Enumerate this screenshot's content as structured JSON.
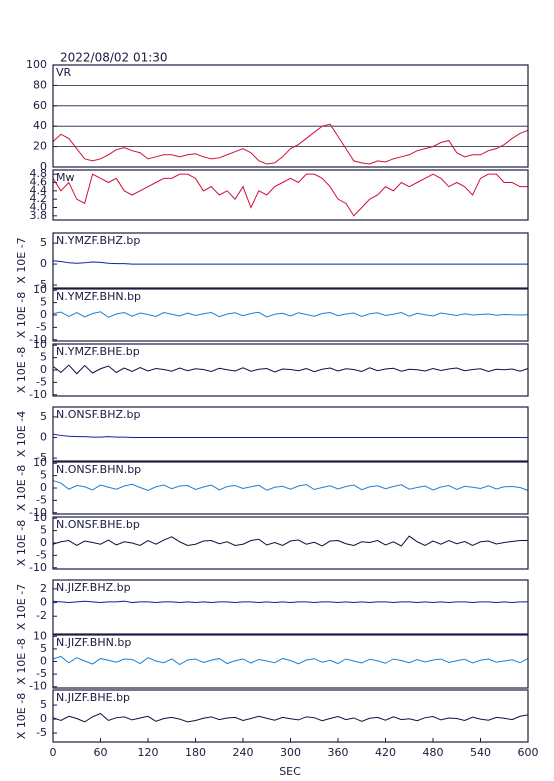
{
  "chart_data": {
    "title": "2022/08/02 01:30",
    "xlabel": "SEC",
    "xlim": [
      0,
      600
    ],
    "xticks": [
      0,
      60,
      120,
      180,
      240,
      300,
      360,
      420,
      480,
      540,
      600
    ],
    "x": [
      0,
      10,
      20,
      30,
      40,
      50,
      60,
      70,
      80,
      90,
      100,
      110,
      120,
      130,
      140,
      150,
      160,
      170,
      180,
      190,
      200,
      210,
      220,
      230,
      240,
      250,
      260,
      270,
      280,
      290,
      300,
      310,
      320,
      330,
      340,
      350,
      360,
      370,
      380,
      390,
      400,
      410,
      420,
      430,
      440,
      450,
      460,
      470,
      480,
      490,
      500,
      510,
      520,
      530,
      540,
      550,
      560,
      570,
      580,
      590,
      600
    ],
    "panels": [
      {
        "type": "line",
        "label": "VR",
        "color": "#d0103a",
        "grid": true,
        "ylim": [
          0,
          100
        ],
        "yticks": [
          0,
          20,
          40,
          60,
          80,
          100
        ],
        "values": [
          25,
          32,
          28,
          18,
          8,
          6,
          8,
          12,
          17,
          19,
          16,
          14,
          8,
          10,
          12,
          12,
          10,
          12,
          13,
          10,
          8,
          9,
          12,
          15,
          18,
          14,
          6,
          3,
          4,
          10,
          18,
          22,
          28,
          34,
          40,
          42,
          30,
          18,
          6,
          4,
          3,
          6,
          5,
          8,
          10,
          12,
          16,
          18,
          20,
          24,
          26,
          14,
          10,
          12,
          12,
          16,
          18,
          22,
          28,
          33,
          36
        ]
      },
      {
        "type": "line",
        "label": "Mw",
        "color": "#d0103a",
        "grid": false,
        "ylim": [
          3.7,
          4.9
        ],
        "yticks": [
          3.8,
          {
            "value": 4,
            "label": "4.0"
          },
          4.2,
          4.4,
          4.6,
          4.8
        ],
        "values": [
          4.7,
          4.4,
          4.6,
          4.2,
          4.1,
          4.8,
          4.7,
          4.6,
          4.7,
          4.4,
          4.3,
          4.4,
          4.5,
          4.6,
          4.7,
          4.7,
          4.8,
          4.8,
          4.7,
          4.4,
          4.5,
          4.3,
          4.4,
          4.2,
          4.5,
          4.0,
          4.4,
          4.3,
          4.5,
          4.6,
          4.7,
          4.6,
          4.8,
          4.8,
          4.7,
          4.5,
          4.2,
          4.1,
          3.8,
          4.0,
          4.2,
          4.3,
          4.5,
          4.4,
          4.6,
          4.5,
          4.6,
          4.7,
          4.8,
          4.7,
          4.5,
          4.6,
          4.5,
          4.3,
          4.7,
          4.8,
          4.8,
          4.6,
          4.6,
          4.5,
          4.5
        ]
      },
      {
        "type": "line",
        "label": "N.YMZF.BHZ.bp",
        "ylabel": "X 10E -7",
        "color": "#1020a0",
        "grid": false,
        "ylim": [
          -5.7,
          7.4
        ],
        "yticks": [
          -5,
          0,
          5
        ],
        "values": [
          0.8,
          0.6,
          0.3,
          0.2,
          0.3,
          0.5,
          0.4,
          0.2,
          0.1,
          0.1,
          0,
          0,
          0,
          0,
          0,
          0,
          0,
          0,
          0,
          0,
          0,
          0,
          0,
          0,
          0,
          0,
          0,
          0,
          0,
          0,
          0,
          0,
          0,
          0,
          0,
          0,
          0,
          0,
          0,
          0,
          0,
          0,
          0,
          0,
          0,
          0,
          0,
          0,
          0,
          0,
          0,
          0,
          0,
          0,
          0,
          0,
          0,
          0,
          0,
          0,
          0
        ]
      },
      {
        "type": "line",
        "label": "N.YMZF.BHN.bp",
        "ylabel": "X 10E -8",
        "color": "#2080d0",
        "grid": false,
        "ylim": [
          -10.5,
          10.5
        ],
        "yticks": [
          -10,
          -5,
          0,
          5,
          10
        ],
        "values": [
          0.5,
          1.2,
          -0.6,
          1.0,
          -0.8,
          0.6,
          1.3,
          -0.9,
          0.4,
          1.0,
          -0.5,
          0.8,
          0.2,
          -0.6,
          1.0,
          0.3,
          -0.4,
          0.8,
          -0.2,
          0.5,
          1.0,
          -0.7,
          0.4,
          0.9,
          -0.3,
          0.6,
          1.1,
          -0.8,
          0.3,
          0.7,
          -0.4,
          0.9,
          0.2,
          -0.5,
          0.6,
          1.0,
          -0.3,
          0.4,
          0.8,
          -0.6,
          0.5,
          0.9,
          -0.2,
          0.3,
          1.0,
          -0.5,
          0.7,
          0.1,
          -0.4,
          0.8,
          0.3,
          -0.2,
          0.5,
          0.0,
          0.2,
          0.4,
          -0.1,
          0.2,
          0.1,
          0.0,
          0.1
        ]
      },
      {
        "type": "line",
        "label": "N.YMZF.BHE.bp",
        "ylabel": "X 10E -8",
        "color": "#101040",
        "grid": false,
        "ylim": [
          -10.5,
          10.5
        ],
        "yticks": [
          -10,
          -5,
          0,
          5,
          10
        ],
        "values": [
          1.5,
          -1.0,
          2.0,
          -1.5,
          1.8,
          -1.2,
          0.5,
          1.6,
          -1.0,
          0.8,
          -0.6,
          1.0,
          -0.4,
          0.6,
          0.2,
          -0.5,
          0.8,
          -0.3,
          0.5,
          0.2,
          -0.6,
          0.7,
          0.1,
          -0.4,
          0.9,
          -0.5,
          0.3,
          0.6,
          -0.8,
          0.4,
          0.2,
          -0.3,
          0.6,
          -0.7,
          0.3,
          0.8,
          -0.4,
          0.5,
          0.2,
          -0.6,
          0.9,
          -0.3,
          0.4,
          0.7,
          -0.5,
          0.3,
          0.1,
          -0.4,
          0.6,
          -0.2,
          0.4,
          0.8,
          -0.3,
          0.2,
          0.5,
          -0.6,
          0.3,
          0.1,
          0.4,
          -0.5,
          0.6
        ]
      },
      {
        "type": "line",
        "label": "N.ONSF.BHZ.bp",
        "ylabel": "X 10E -4",
        "color": "#1020a0",
        "grid": false,
        "ylim": [
          -5.7,
          7.4
        ],
        "yticks": [
          -5,
          0,
          5
        ],
        "values": [
          0.8,
          0.5,
          0.3,
          0.2,
          0.2,
          0.1,
          0.1,
          0.2,
          0.1,
          0.1,
          0,
          0,
          0,
          0,
          0,
          0,
          0,
          0,
          0,
          0,
          0,
          0,
          0,
          0,
          0,
          0,
          0,
          0,
          0,
          0,
          0,
          0,
          0,
          0,
          0,
          0,
          0,
          0,
          0,
          0,
          0,
          0,
          0,
          0,
          0,
          0,
          0,
          0,
          0,
          0,
          0,
          0,
          0,
          0,
          0,
          0,
          0,
          0,
          0,
          0,
          0
        ]
      },
      {
        "type": "line",
        "label": "N.ONSF.BHN.bp",
        "ylabel": "X 10E -8",
        "color": "#2080d0",
        "grid": false,
        "ylim": [
          -10.5,
          10.5
        ],
        "yticks": [
          -10,
          -5,
          0,
          5,
          10
        ],
        "values": [
          3.0,
          2.0,
          -0.5,
          1.0,
          0.5,
          -0.8,
          1.2,
          0.3,
          -0.5,
          0.8,
          1.5,
          0.2,
          -1.0,
          0.5,
          1.2,
          -0.3,
          0.8,
          1.0,
          -0.6,
          0.4,
          1.2,
          -0.8,
          0.6,
          1.0,
          -0.2,
          0.5,
          1.1,
          -0.9,
          0.3,
          0.7,
          -0.5,
          0.8,
          1.4,
          -0.6,
          0.2,
          0.9,
          -0.4,
          0.6,
          1.2,
          -0.7,
          0.5,
          0.9,
          -0.3,
          0.6,
          1.3,
          -0.5,
          0.2,
          0.8,
          -0.8,
          0.4,
          1.0,
          -0.6,
          0.7,
          0.3,
          -0.2,
          0.9,
          -0.4,
          0.5,
          0.6,
          0.2,
          -1.0
        ]
      },
      {
        "type": "line",
        "label": "N.ONSF.BHE.bp",
        "ylabel": "X 10E -8",
        "color": "#101040",
        "grid": false,
        "ylim": [
          -10.5,
          10.5
        ],
        "yticks": [
          -10,
          -5,
          0,
          5,
          10
        ],
        "values": [
          -0.5,
          0.5,
          1.0,
          -1.0,
          0.8,
          0.2,
          -0.5,
          1.2,
          -0.8,
          0.5,
          0.0,
          -1.0,
          1.0,
          -0.5,
          1.2,
          2.5,
          0.5,
          -1.0,
          -0.5,
          0.8,
          1.0,
          -0.3,
          0.5,
          -1.0,
          -0.5,
          1.0,
          1.5,
          -0.8,
          0.2,
          -1.0,
          0.8,
          1.2,
          -0.5,
          0.3,
          -1.2,
          0.8,
          1.0,
          -0.3,
          -1.0,
          0.5,
          0.2,
          1.0,
          -0.8,
          0.5,
          -1.2,
          2.8,
          0.5,
          -1.0,
          0.8,
          -0.5,
          1.0,
          -0.3,
          0.6,
          -1.0,
          0.5,
          0.8,
          -0.4,
          0.2,
          0.6,
          1.0,
          1.0
        ]
      },
      {
        "type": "line",
        "label": "N.JIZF.BHZ.bp",
        "ylabel": "X 10E -7",
        "color": "#1020a0",
        "grid": false,
        "ylim": [
          -4.6,
          3.3
        ],
        "yticks": [
          -2,
          0,
          2
        ],
        "values": [
          0.2,
          0.1,
          0.0,
          0.1,
          0.2,
          0.1,
          0.0,
          0.1,
          0.1,
          0.2,
          0.0,
          0.1,
          0.1,
          0.0,
          0.1,
          0.1,
          0.0,
          0.1,
          0.0,
          0.1,
          0.0,
          0.1,
          0.1,
          0.0,
          0.1,
          0.1,
          0.0,
          0.1,
          0.0,
          0.1,
          0.0,
          0.1,
          0.1,
          0.0,
          0.1,
          0.1,
          0.0,
          0.1,
          0.0,
          0.1,
          0.0,
          0.1,
          0.1,
          0.0,
          0.1,
          0.1,
          0.0,
          0.1,
          0.0,
          0.1,
          0.0,
          0.1,
          0.1,
          0.0,
          0.1,
          0.1,
          0.0,
          0.1,
          0.0,
          0.1,
          0.1
        ]
      },
      {
        "type": "line",
        "label": "N.JIZF.BHN.bp",
        "ylabel": "X 10E -8",
        "color": "#2080d0",
        "grid": false,
        "ylim": [
          -10.5,
          10.5
        ],
        "yticks": [
          -10,
          -5,
          0,
          5,
          10
        ],
        "values": [
          1.0,
          2.0,
          -0.5,
          1.5,
          0.2,
          -1.0,
          1.2,
          0.5,
          -0.3,
          1.0,
          0.8,
          -0.8,
          1.5,
          0.2,
          -0.5,
          1.0,
          -1.2,
          0.6,
          1.0,
          -0.4,
          0.5,
          1.2,
          -0.8,
          0.3,
          1.0,
          -0.6,
          0.8,
          0.2,
          -0.5,
          1.2,
          0.4,
          -0.9,
          0.6,
          1.1,
          -0.3,
          0.5,
          -0.8,
          1.0,
          0.2,
          -0.6,
          0.9,
          0.3,
          -0.7,
          1.0,
          0.4,
          -0.5,
          0.8,
          -0.2,
          0.6,
          1.0,
          -0.4,
          0.3,
          0.9,
          -0.6,
          0.5,
          1.0,
          -0.3,
          0.2,
          0.7,
          -0.5,
          1.2
        ]
      },
      {
        "type": "line",
        "label": "N.JIZF.BHE.bp",
        "ylabel": "X 10E -8",
        "color": "#101040",
        "grid": false,
        "ylim": [
          -8.2,
          10.4
        ],
        "yticks": [
          -5,
          0,
          5
        ],
        "values": [
          0.5,
          -0.5,
          1.0,
          0.2,
          -1.0,
          0.8,
          2.0,
          -0.5,
          0.5,
          0.8,
          -0.3,
          0.4,
          1.0,
          -0.8,
          0.2,
          0.6,
          0.0,
          -1.0,
          -0.5,
          0.3,
          0.8,
          -0.2,
          0.4,
          0.6,
          -0.5,
          0.2,
          1.0,
          0.3,
          -0.4,
          0.6,
          0.1,
          -0.3,
          0.8,
          0.5,
          -0.6,
          0.2,
          0.9,
          -0.2,
          0.4,
          -0.8,
          0.3,
          0.6,
          -0.4,
          0.8,
          -0.2,
          0.1,
          -0.6,
          0.5,
          0.9,
          -0.3,
          0.4,
          0.2,
          -0.5,
          0.7,
          0.0,
          -0.4,
          0.6,
          0.3,
          -0.2,
          1.0,
          1.5
        ]
      }
    ]
  }
}
